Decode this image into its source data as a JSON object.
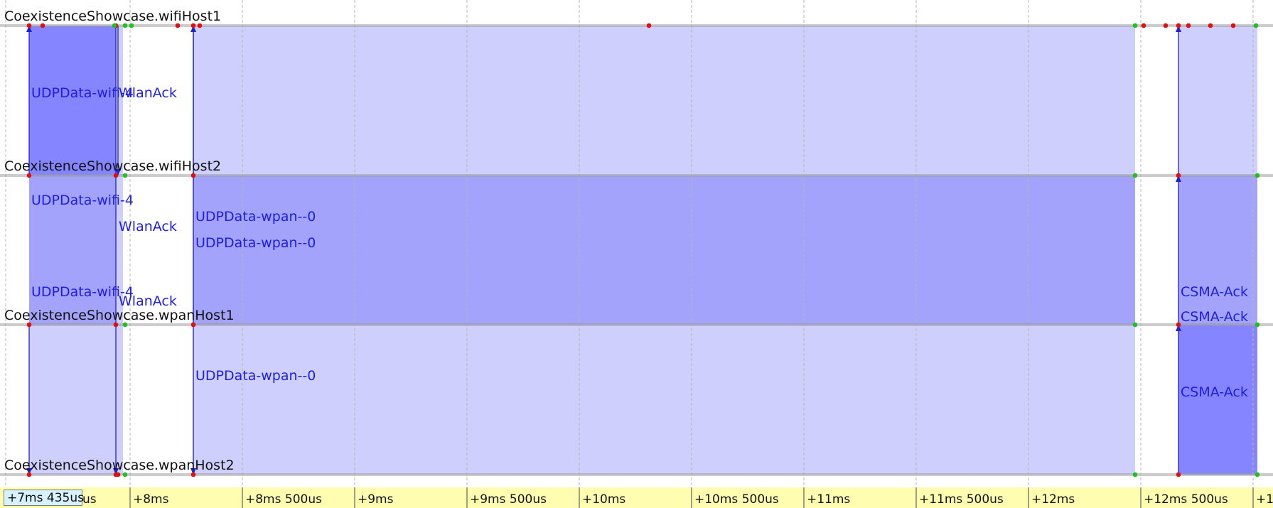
{
  "colors": {
    "background": "#ffffff",
    "lane_line": "#9a9a9a",
    "grid": "#b5b5b5",
    "tx_dark": "#8585ff",
    "tx_mid": "#a3a3fc",
    "tx_light": "#cfcffd",
    "label_text": "#1d1de6",
    "event_red": "#e01010",
    "event_green": "#20c020",
    "arrow": "#2020d0",
    "axis_bg": "#fffdb0",
    "cursor_bg": "#d6f2ff"
  },
  "modules": [
    "CoexistenceShowcase.wifiHost1",
    "CoexistenceShowcase.wifiHost2",
    "CoexistenceShowcase.wpanHost1",
    "CoexistenceShowcase.wpanHost2"
  ],
  "axis": {
    "cursor_label": "+7ms 435us",
    "ticks": [
      "+8ms",
      "+8ms 500us",
      "+9ms",
      "+9ms 500us",
      "+10ms",
      "+10ms 500us",
      "+11ms",
      "+11ms 500us",
      "+12ms",
      "+12ms 500us",
      "+1"
    ]
  },
  "messages": [
    {
      "name": "UDPData-wifi-4",
      "from": "wifiHost1",
      "to": "wifiHost2"
    },
    {
      "name": "WlanAck",
      "from": "wifiHost2",
      "to": "wifiHost1"
    },
    {
      "name": "UDPData-wpan--0",
      "from": "wpanHost1",
      "to": "wpanHost2"
    },
    {
      "name": "CSMA-Ack",
      "from": "wpanHost2",
      "to": "wpanHost1"
    }
  ],
  "transmission_labels": [
    {
      "text": "UDPData-wifi-4"
    },
    {
      "text": "WlanAck"
    },
    {
      "text": "UDPData-wifi-4"
    },
    {
      "text": "WlanAck"
    },
    {
      "text": "UDPData-wpan--0"
    },
    {
      "text": "UDPData-wpan--0"
    },
    {
      "text": "UDPData-wifi-4"
    },
    {
      "text": "WlanAck"
    },
    {
      "text": "CSMA-Ack"
    },
    {
      "text": "CSMA-Ack"
    },
    {
      "text": "UDPData-wpan--0"
    },
    {
      "text": "CSMA-Ack"
    }
  ]
}
